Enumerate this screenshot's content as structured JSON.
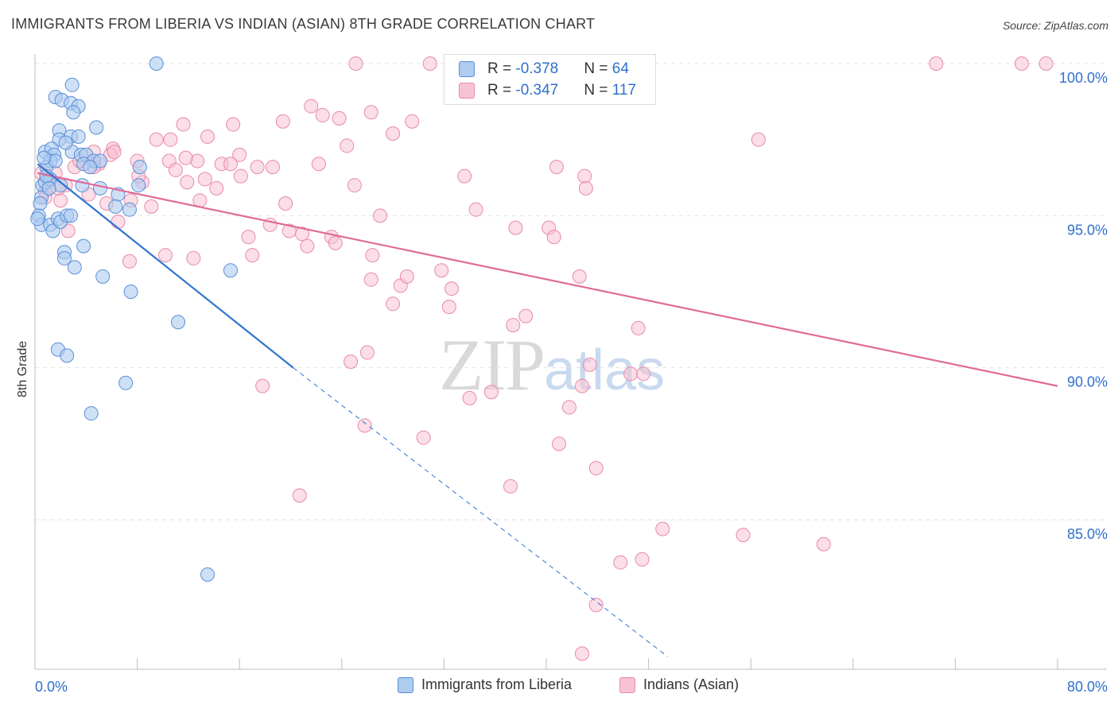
{
  "title": "IMMIGRANTS FROM LIBERIA VS INDIAN (ASIAN) 8TH GRADE CORRELATION CHART",
  "source": "Source: ZipAtlas.com",
  "watermark": {
    "zip": "ZIP",
    "atlas": "atlas"
  },
  "stats": {
    "row1": {
      "r_label": "R = ",
      "r_value": "-0.378",
      "n_label": "N = ",
      "n_value": "64"
    },
    "row2": {
      "r_label": "R = ",
      "r_value": "-0.347",
      "n_label": "N = ",
      "n_value": "117"
    }
  },
  "chart_data": {
    "type": "scatter",
    "title": "IMMIGRANTS FROM LIBERIA VS INDIAN (ASIAN) 8TH GRADE CORRELATION CHART",
    "xlabel": "",
    "ylabel": "8th Grade",
    "xlim": [
      0,
      80
    ],
    "ylim": [
      80.5,
      100.8
    ],
    "x_tick_labels": [
      "0.0%",
      "80.0%"
    ],
    "y_ticks": [
      85,
      90,
      95,
      100
    ],
    "y_tick_labels": [
      "85.0%",
      "90.0%",
      "95.0%",
      "100.0%"
    ],
    "grid": true,
    "legend_position": "bottom",
    "colors": {
      "liberia_fill": "#aecbf0",
      "liberia_stroke": "#5b8fd6",
      "liberia_line": "#2f74d0",
      "indian_fill": "#f7c3d4",
      "indian_stroke": "#e88aaa",
      "indian_line": "#e06b96",
      "tick_label": "#2f6fce",
      "grid": "#e2e2e2"
    },
    "series": [
      {
        "name": "Immigrants from Liberia",
        "r": -0.378,
        "n": 64,
        "trend": {
          "x0": 0.2,
          "y0": 96.7,
          "x1": 20.2,
          "y1": 90.0,
          "dash_to_x": 49.5,
          "dash_to_y": 80.5
        },
        "points": [
          [
            9.5,
            100.0
          ],
          [
            2.9,
            99.3
          ],
          [
            1.6,
            98.9
          ],
          [
            2.1,
            98.8
          ],
          [
            2.8,
            98.7
          ],
          [
            3.4,
            98.6
          ],
          [
            3.0,
            98.4
          ],
          [
            4.8,
            97.9
          ],
          [
            1.9,
            97.8
          ],
          [
            2.8,
            97.6
          ],
          [
            3.4,
            97.6
          ],
          [
            1.9,
            97.5
          ],
          [
            0.8,
            97.1
          ],
          [
            1.3,
            97.2
          ],
          [
            1.5,
            97.0
          ],
          [
            2.9,
            97.1
          ],
          [
            3.6,
            97.0
          ],
          [
            4.0,
            97.0
          ],
          [
            1.2,
            96.8
          ],
          [
            0.9,
            96.6
          ],
          [
            1.6,
            96.8
          ],
          [
            4.6,
            96.8
          ],
          [
            5.1,
            96.8
          ],
          [
            3.8,
            96.7
          ],
          [
            4.3,
            96.6
          ],
          [
            8.2,
            96.6
          ],
          [
            0.6,
            96.0
          ],
          [
            0.8,
            96.1
          ],
          [
            1.2,
            96.2
          ],
          [
            2.0,
            96.0
          ],
          [
            3.7,
            96.0
          ],
          [
            5.1,
            95.9
          ],
          [
            8.1,
            96.0
          ],
          [
            0.5,
            95.6
          ],
          [
            0.4,
            95.4
          ],
          [
            6.5,
            95.7
          ],
          [
            0.3,
            95.0
          ],
          [
            0.5,
            94.7
          ],
          [
            0.2,
            94.9
          ],
          [
            1.2,
            94.7
          ],
          [
            1.4,
            94.5
          ],
          [
            1.8,
            94.9
          ],
          [
            2.0,
            94.8
          ],
          [
            2.5,
            95.0
          ],
          [
            2.8,
            95.0
          ],
          [
            6.3,
            95.3
          ],
          [
            7.4,
            95.2
          ],
          [
            3.8,
            94.0
          ],
          [
            2.3,
            93.8
          ],
          [
            2.3,
            93.6
          ],
          [
            3.1,
            93.3
          ],
          [
            5.3,
            93.0
          ],
          [
            7.5,
            92.5
          ],
          [
            15.3,
            93.2
          ],
          [
            11.2,
            91.5
          ],
          [
            1.8,
            90.6
          ],
          [
            2.5,
            90.4
          ],
          [
            7.1,
            89.5
          ],
          [
            4.4,
            88.5
          ],
          [
            13.5,
            83.2
          ],
          [
            0.9,
            96.3
          ],
          [
            1.1,
            95.9
          ],
          [
            2.4,
            97.4
          ],
          [
            0.7,
            96.9
          ]
        ]
      },
      {
        "name": "Indians (Asian)",
        "r": -0.347,
        "n": 117,
        "trend": {
          "x0": 0.2,
          "y0": 96.4,
          "x1": 80.0,
          "y1": 89.4
        },
        "points": [
          [
            25.1,
            100.0
          ],
          [
            30.9,
            100.0
          ],
          [
            46.6,
            100.0
          ],
          [
            70.5,
            100.0
          ],
          [
            77.2,
            100.0
          ],
          [
            79.1,
            100.0
          ],
          [
            21.6,
            98.6
          ],
          [
            26.3,
            98.4
          ],
          [
            22.5,
            98.3
          ],
          [
            23.8,
            98.2
          ],
          [
            29.5,
            98.1
          ],
          [
            19.4,
            98.1
          ],
          [
            11.6,
            98.0
          ],
          [
            15.5,
            98.0
          ],
          [
            28.0,
            97.7
          ],
          [
            9.5,
            97.5
          ],
          [
            10.6,
            97.5
          ],
          [
            13.5,
            97.6
          ],
          [
            24.4,
            97.3
          ],
          [
            56.6,
            97.5
          ],
          [
            6.1,
            97.2
          ],
          [
            4.6,
            97.1
          ],
          [
            5.9,
            97.0
          ],
          [
            16.0,
            97.0
          ],
          [
            8.0,
            96.8
          ],
          [
            10.5,
            96.8
          ],
          [
            12.7,
            96.8
          ],
          [
            14.6,
            96.7
          ],
          [
            22.2,
            96.7
          ],
          [
            17.4,
            96.6
          ],
          [
            18.6,
            96.6
          ],
          [
            3.1,
            96.6
          ],
          [
            5.0,
            96.7
          ],
          [
            11.0,
            96.5
          ],
          [
            1.6,
            96.4
          ],
          [
            33.6,
            96.3
          ],
          [
            40.8,
            96.6
          ],
          [
            43.0,
            96.3
          ],
          [
            13.3,
            96.2
          ],
          [
            16.1,
            96.3
          ],
          [
            4.6,
            96.6
          ],
          [
            2.4,
            96.0
          ],
          [
            8.4,
            96.1
          ],
          [
            11.9,
            96.1
          ],
          [
            14.2,
            95.9
          ],
          [
            1.0,
            96.2
          ],
          [
            0.8,
            95.8
          ],
          [
            4.2,
            95.7
          ],
          [
            7.5,
            95.5
          ],
          [
            12.9,
            95.5
          ],
          [
            43.1,
            95.9
          ],
          [
            0.8,
            95.6
          ],
          [
            2.0,
            95.5
          ],
          [
            5.6,
            95.4
          ],
          [
            9.1,
            95.3
          ],
          [
            19.6,
            95.4
          ],
          [
            34.5,
            95.2
          ],
          [
            27.0,
            95.0
          ],
          [
            6.5,
            94.8
          ],
          [
            18.4,
            94.7
          ],
          [
            2.6,
            94.5
          ],
          [
            37.6,
            94.6
          ],
          [
            40.2,
            94.6
          ],
          [
            20.9,
            94.4
          ],
          [
            16.7,
            94.3
          ],
          [
            23.2,
            94.3
          ],
          [
            19.9,
            94.5
          ],
          [
            23.5,
            94.1
          ],
          [
            21.3,
            94.0
          ],
          [
            40.6,
            94.3
          ],
          [
            10.2,
            93.7
          ],
          [
            7.4,
            93.5
          ],
          [
            12.4,
            93.6
          ],
          [
            17.0,
            93.7
          ],
          [
            26.4,
            93.7
          ],
          [
            31.8,
            93.2
          ],
          [
            26.3,
            92.9
          ],
          [
            28.6,
            92.7
          ],
          [
            29.1,
            93.0
          ],
          [
            42.6,
            93.0
          ],
          [
            32.6,
            92.6
          ],
          [
            28.0,
            92.1
          ],
          [
            32.4,
            92.0
          ],
          [
            38.4,
            91.7
          ],
          [
            37.4,
            91.4
          ],
          [
            47.2,
            91.3
          ],
          [
            26.0,
            90.5
          ],
          [
            24.7,
            90.2
          ],
          [
            43.4,
            90.1
          ],
          [
            46.6,
            89.8
          ],
          [
            17.8,
            89.4
          ],
          [
            42.8,
            89.4
          ],
          [
            47.6,
            89.8
          ],
          [
            35.7,
            89.2
          ],
          [
            34.0,
            89.0
          ],
          [
            41.8,
            88.7
          ],
          [
            25.8,
            88.1
          ],
          [
            30.4,
            87.7
          ],
          [
            41.0,
            87.5
          ],
          [
            43.9,
            86.7
          ],
          [
            37.2,
            86.1
          ],
          [
            20.7,
            85.8
          ],
          [
            49.1,
            84.7
          ],
          [
            55.4,
            84.5
          ],
          [
            61.7,
            84.2
          ],
          [
            45.8,
            83.6
          ],
          [
            47.5,
            83.7
          ],
          [
            43.9,
            82.2
          ],
          [
            42.8,
            80.6
          ],
          [
            0.5,
            96.4
          ],
          [
            8.1,
            96.3
          ],
          [
            1.8,
            95.9
          ],
          [
            6.2,
            97.1
          ],
          [
            3.5,
            96.8
          ],
          [
            15.3,
            96.7
          ],
          [
            11.8,
            96.9
          ],
          [
            25.0,
            96.0
          ]
        ]
      }
    ]
  }
}
